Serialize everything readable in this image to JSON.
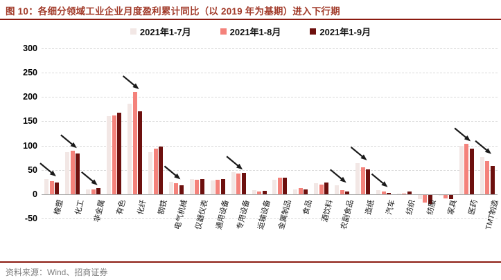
{
  "title": "图 10：各细分领域工业企业月度盈利累计同比（以 2019 年为基期）进入下行期",
  "source": "资料来源：Wind、招商证券",
  "colors": {
    "title_text": "#A23B2A",
    "rule": "#8B1A10",
    "grid": "#D9D9D9",
    "zero_axis": "#A9A9A9",
    "arrow": "#1A1A1A",
    "source_text": "#7F7F7F",
    "series_1_7": "#F2E7E5",
    "series_1_8": "#F4827B",
    "series_1_9": "#6D100E"
  },
  "chart_data": {
    "type": "bar",
    "categories": [
      "橡塑",
      "化工",
      "非金属",
      "有色",
      "化纤",
      "钢铁",
      "电气机械",
      "仪器仪表",
      "通用设备",
      "专用设备",
      "运输设备",
      "金属制品",
      "食品",
      "酒饮料",
      "农副食品",
      "造纸",
      "汽车",
      "纺织",
      "纺服",
      "家具",
      "医药",
      "TMT制造"
    ],
    "series": [
      {
        "name": "2021年1-7月",
        "color": "#F2E7E5",
        "values": [
          31,
          87,
          10,
          160,
          186,
          87,
          25,
          31,
          28,
          45,
          8,
          30,
          10,
          22,
          18,
          64,
          9,
          1,
          -8,
          -2,
          100,
          77
        ]
      },
      {
        "name": "2021年1-8月",
        "color": "#F4827B",
        "values": [
          27,
          89,
          10,
          162,
          210,
          93,
          22,
          30,
          30,
          42,
          5,
          34,
          13,
          20,
          9,
          55,
          5,
          2,
          -15,
          -7,
          103,
          68
        ]
      },
      {
        "name": "2021年1-9月",
        "color": "#6D100E",
        "values": [
          24,
          84,
          13,
          167,
          170,
          98,
          19,
          31,
          31,
          44,
          7,
          34,
          10,
          24,
          5,
          51,
          3,
          6,
          -18,
          -9,
          93,
          58
        ]
      }
    ],
    "title": "各细分领域工业企业月度盈利累计同比（以 2019 年为基期）进入下行期",
    "xlabel": "",
    "ylabel": "",
    "ylim": [
      -50,
      300
    ],
    "yticks": [
      300,
      250,
      200,
      150,
      100,
      50,
      0,
      -50
    ],
    "grid": "horizontal-dashed",
    "legend_position": "top-center",
    "annotations": {
      "arrow_style": "diagonal-down-right",
      "arrow_categories": [
        "橡塑",
        "化工",
        "非金属",
        "化纤",
        "电气机械",
        "专用设备",
        "农副食品",
        "造纸",
        "汽车",
        "医药",
        "TMT制造"
      ]
    }
  }
}
